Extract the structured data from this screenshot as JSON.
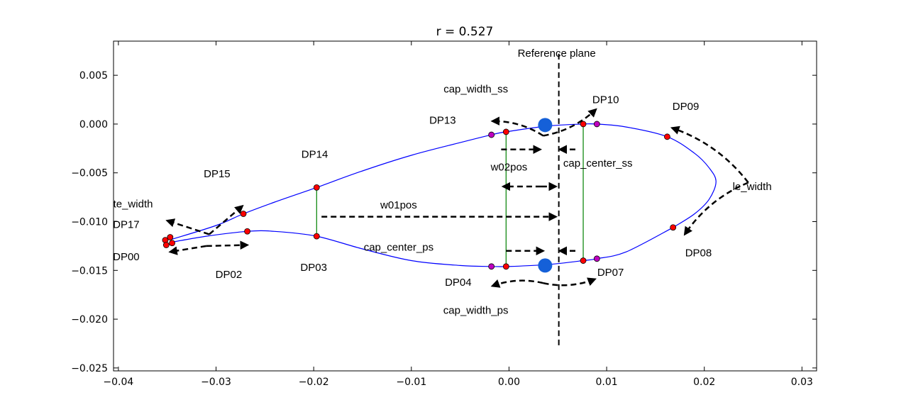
{
  "chart_data": {
    "type": "line",
    "title": "r = 0.527",
    "xlabel": "",
    "ylabel": "",
    "xlim": [
      -0.0405,
      0.0315
    ],
    "ylim": [
      -0.0253,
      0.0085
    ],
    "grid": false,
    "x_ticks": [
      -0.04,
      -0.03,
      -0.02,
      -0.01,
      0.0,
      0.01,
      0.02,
      0.03
    ],
    "x_tick_labels": [
      "−0.04",
      "−0.03",
      "−0.02",
      "−0.01",
      "0.00",
      "0.01",
      "0.02",
      "0.03"
    ],
    "y_ticks": [
      0.005,
      0.0,
      -0.005,
      -0.01,
      -0.015,
      -0.02,
      -0.025
    ],
    "y_tick_labels": [
      "0.005",
      "0.000",
      "−0.005",
      "−0.010",
      "−0.015",
      "−0.020",
      "−0.025"
    ],
    "colors": {
      "profile": "#0000ff",
      "spar_line": "#008000",
      "point_red": "#ff0000",
      "point_magenta": "#bf00bf",
      "marker_blue": "#1560d8",
      "arrow": "#000000"
    },
    "profile_suction_side": [
      {
        "x": -0.0345,
        "y": -0.0118
      },
      {
        "x": -0.03,
        "y": -0.0104
      },
      {
        "x": -0.0272,
        "y": -0.0092
      },
      {
        "x": -0.024,
        "y": -0.008
      },
      {
        "x": -0.0197,
        "y": -0.0065
      },
      {
        "x": -0.015,
        "y": -0.0048
      },
      {
        "x": -0.01,
        "y": -0.0032
      },
      {
        "x": -0.005,
        "y": -0.0019
      },
      {
        "x": -0.0018,
        "y": -0.0011
      },
      {
        "x": -0.0003,
        "y": -0.0008
      },
      {
        "x": 0.004,
        "y": -0.0002
      },
      {
        "x": 0.0076,
        "y": 0.0
      },
      {
        "x": 0.009,
        "y": 0.0
      },
      {
        "x": 0.012,
        "y": -0.0003
      },
      {
        "x": 0.0162,
        "y": -0.0013
      },
      {
        "x": 0.019,
        "y": -0.003
      },
      {
        "x": 0.0205,
        "y": -0.0045
      },
      {
        "x": 0.0212,
        "y": -0.0059
      },
      {
        "x": 0.0205,
        "y": -0.0077
      },
      {
        "x": 0.019,
        "y": -0.0092
      },
      {
        "x": 0.0168,
        "y": -0.0106
      }
    ],
    "profile_pressure_side": [
      {
        "x": -0.0345,
        "y": -0.0121
      },
      {
        "x": -0.031,
        "y": -0.0115
      },
      {
        "x": -0.0268,
        "y": -0.011
      },
      {
        "x": -0.024,
        "y": -0.011
      },
      {
        "x": -0.0197,
        "y": -0.0115
      },
      {
        "x": -0.015,
        "y": -0.0128
      },
      {
        "x": -0.01,
        "y": -0.014
      },
      {
        "x": -0.005,
        "y": -0.0145
      },
      {
        "x": -0.0018,
        "y": -0.0146
      },
      {
        "x": 0.0,
        "y": -0.0146
      },
      {
        "x": 0.004,
        "y": -0.0144
      },
      {
        "x": 0.0076,
        "y": -0.014
      },
      {
        "x": 0.009,
        "y": -0.0138
      },
      {
        "x": 0.012,
        "y": -0.0131
      },
      {
        "x": 0.0168,
        "y": -0.0106
      }
    ],
    "spar_lines": [
      {
        "x": -0.0197,
        "y1": -0.0065,
        "y2": -0.0115
      },
      {
        "x": -0.0003,
        "y1": -0.0008,
        "y2": -0.0146
      },
      {
        "x": 0.0076,
        "y1": 0.0,
        "y2": -0.014
      }
    ],
    "red_points": [
      {
        "x": -0.0352,
        "y": -0.0119
      },
      {
        "x": -0.0347,
        "y": -0.0116
      },
      {
        "x": -0.0351,
        "y": -0.0124
      },
      {
        "x": -0.0345,
        "y": -0.0122
      },
      {
        "x": -0.0272,
        "y": -0.0092
      },
      {
        "x": -0.0268,
        "y": -0.011
      },
      {
        "x": -0.0197,
        "y": -0.0065
      },
      {
        "x": -0.0197,
        "y": -0.0115
      },
      {
        "x": -0.0003,
        "y": -0.0008
      },
      {
        "x": -0.0003,
        "y": -0.0146
      },
      {
        "x": 0.0076,
        "y": 0.0
      },
      {
        "x": 0.0076,
        "y": -0.014
      },
      {
        "x": 0.0162,
        "y": -0.0013
      },
      {
        "x": 0.0168,
        "y": -0.0106
      }
    ],
    "magenta_points": [
      {
        "x": -0.0018,
        "y": -0.0011
      },
      {
        "x": -0.0018,
        "y": -0.0146
      },
      {
        "x": 0.009,
        "y": 0.0
      },
      {
        "x": 0.009,
        "y": -0.0138
      }
    ],
    "blue_markers": [
      {
        "x": 0.0037,
        "y": -0.0001
      },
      {
        "x": 0.0037,
        "y": -0.0145
      }
    ],
    "reference_plane": {
      "x": 0.0051,
      "y1": 0.0072,
      "y2": -0.0228,
      "label": "Reference plane"
    },
    "annotations": [
      {
        "text": "DP17",
        "x": -0.0392,
        "y": -0.0103
      },
      {
        "text": "DP00",
        "x": -0.0392,
        "y": -0.0136
      },
      {
        "text": "te_width",
        "x": -0.0385,
        "y": -0.0082
      },
      {
        "text": "DP15",
        "x": -0.0299,
        "y": -0.0051
      },
      {
        "text": "DP14",
        "x": -0.0199,
        "y": -0.0031
      },
      {
        "text": "DP02",
        "x": -0.0287,
        "y": -0.0154
      },
      {
        "text": "DP03",
        "x": -0.02,
        "y": -0.0147
      },
      {
        "text": "w01pos",
        "x": -0.0113,
        "y": -0.0083
      },
      {
        "text": "cap_center_ps",
        "x": -0.0113,
        "y": -0.0126
      },
      {
        "text": "DP13",
        "x": -0.0068,
        "y": 0.0004
      },
      {
        "text": "cap_width_ss",
        "x": -0.0034,
        "y": 0.0036
      },
      {
        "text": "DP10",
        "x": 0.0099,
        "y": 0.0025
      },
      {
        "text": "DP09",
        "x": 0.0181,
        "y": 0.0018
      },
      {
        "text": "w02pos",
        "x": 0.0
      },
      {
        "text": "cap_center_ss",
        "x": 0.0091,
        "y": -0.004
      },
      {
        "text": "le_width",
        "x": 0.0249,
        "y": -0.0064
      },
      {
        "text": "DP08",
        "x": 0.0194,
        "y": -0.0132
      },
      {
        "text": "DP07",
        "x": 0.0104,
        "y": -0.0152
      },
      {
        "text": "DP04",
        "x": -0.0052,
        "y": -0.0162
      },
      {
        "text": "cap_width_ps",
        "x": -0.0034,
        "y": -0.0191
      }
    ],
    "arrows": [
      {
        "x1": -0.0307,
        "y1": -0.0113,
        "x2": -0.035,
        "y2": -0.0099
      },
      {
        "x1": -0.0307,
        "y1": -0.0113,
        "x2": -0.0273,
        "y2": -0.0084
      },
      {
        "x1": -0.031,
        "y1": -0.0125,
        "x2": -0.0347,
        "y2": -0.0131
      },
      {
        "x1": -0.031,
        "y1": -0.0125,
        "x2": -0.0268,
        "y2": -0.0124
      },
      {
        "x1": -0.0192,
        "y1": -0.0095,
        "x2": 0.0048,
        "y2": -0.0095
      },
      {
        "x1": 0.0033,
        "y1": -0.0064,
        "x2": -0.0006,
        "y2": -0.0064
      },
      {
        "x1": 0.0033,
        "y1": -0.0064,
        "x2": 0.0048,
        "y2": -0.0064
      },
      {
        "x1": -0.0008,
        "y1": -0.0026,
        "x2": 0.0032,
        "y2": -0.0026
      },
      {
        "x1": 0.0068,
        "y1": -0.0026,
        "x2": 0.0052,
        "y2": -0.0026
      },
      {
        "x1": -0.0003,
        "y1": -0.013,
        "x2": 0.0035,
        "y2": -0.013
      },
      {
        "x1": 0.0068,
        "y1": -0.013,
        "x2": 0.0052,
        "y2": -0.013
      },
      {
        "x1": 0.0035,
        "y1": -0.0012,
        "x2": -0.0017,
        "y2": 0.0003,
        "curved": true
      },
      {
        "x1": 0.0035,
        "y1": -0.0012,
        "x2": 0.0089,
        "y2": 0.0015,
        "curved": true
      },
      {
        "x1": 0.0035,
        "y1": -0.0163,
        "x2": -0.0017,
        "y2": -0.0166,
        "curved": true
      },
      {
        "x1": 0.0035,
        "y1": -0.0163,
        "x2": 0.0088,
        "y2": -0.0159,
        "curved": true
      },
      {
        "x1": 0.0245,
        "y1": -0.006,
        "x2": 0.0167,
        "y2": -0.0004,
        "curved": true
      },
      {
        "x1": 0.0245,
        "y1": -0.006,
        "x2": 0.018,
        "y2": -0.0113,
        "curved": true
      }
    ]
  }
}
